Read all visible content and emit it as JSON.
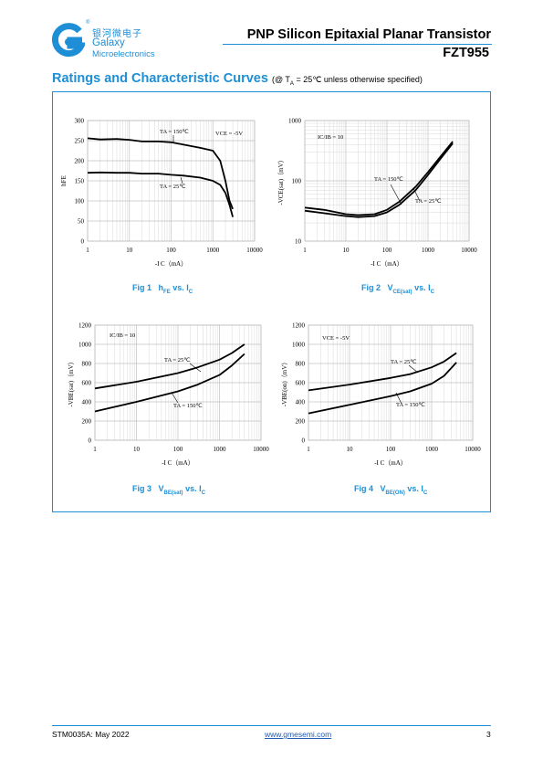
{
  "header": {
    "logo_cn": "银河微电子",
    "logo_reg": "®",
    "logo_en1": "Galaxy",
    "logo_en2": "Microelectronics",
    "title": "PNP Silicon Epitaxial Planar Transistor",
    "part": "FZT955"
  },
  "section": {
    "title": "Ratings and Characteristic Curves",
    "cond_pre": "(@ T",
    "cond_sub": "A",
    "cond_post": " = 25℃ unless otherwise specified)"
  },
  "captions": [
    {
      "fig": "Fig 1",
      "a": "h",
      "a_sub": "FE",
      "b": " vs. I",
      "b_sub": "C"
    },
    {
      "fig": "Fig 2",
      "a": "V",
      "a_sub": "CE(sat)",
      "b": " vs. I",
      "b_sub": "C"
    },
    {
      "fig": "Fig 3",
      "a": "V",
      "a_sub": "BE(sat)",
      "b": " vs. I",
      "b_sub": "C"
    },
    {
      "fig": "Fig 4",
      "a": "V",
      "a_sub": "BE(ON)",
      "b": " vs. I",
      "b_sub": "C"
    }
  ],
  "footer": {
    "left": "STM0035A: May 2022",
    "mid": "www.gmesemi.com",
    "right": "3"
  },
  "chart_data": [
    {
      "type": "line",
      "xscale": "log",
      "xlim": [
        1,
        10000
      ],
      "xticks": [
        "1",
        "10",
        "100",
        "1000",
        "10000"
      ],
      "yscale": "linear",
      "ylim": [
        0,
        300
      ],
      "yticks": [
        "0",
        "50",
        "100",
        "150",
        "200",
        "250",
        "300"
      ],
      "xlabel": "-I C（mA）",
      "ylabel": "hFE",
      "annotations": [
        "TA = 150℃",
        "VCE = -5V",
        "TA = 25℃"
      ],
      "series": [
        {
          "name": "TA = 150℃",
          "x": [
            1,
            2,
            5,
            10,
            20,
            50,
            100,
            200,
            500,
            1000,
            1500,
            2000,
            2500,
            3000
          ],
          "y": [
            256,
            253,
            254,
            252,
            248,
            248,
            246,
            240,
            232,
            225,
            200,
            150,
            100,
            80
          ]
        },
        {
          "name": "TA = 25℃",
          "x": [
            1,
            2,
            5,
            10,
            20,
            50,
            100,
            200,
            500,
            1000,
            1500,
            2000,
            2500,
            3000
          ],
          "y": [
            170,
            171,
            170,
            170,
            168,
            168,
            165,
            163,
            158,
            150,
            140,
            120,
            90,
            60
          ]
        }
      ]
    },
    {
      "type": "line",
      "xscale": "log",
      "xlim": [
        1,
        10000
      ],
      "xticks": [
        "1",
        "10",
        "100",
        "1000",
        "10000"
      ],
      "yscale": "log",
      "ylim": [
        10,
        1000
      ],
      "yticks": [
        "10",
        "100",
        "1000"
      ],
      "xlabel": "-I C（mA）",
      "ylabel": "-VCE(sat)（mV）",
      "annotations": [
        "IC/IB = 10",
        "TA = 150℃",
        "TA = 25℃"
      ],
      "series": [
        {
          "name": "TA = 150℃",
          "x": [
            1,
            3,
            10,
            20,
            50,
            100,
            200,
            500,
            1000,
            2000,
            4000
          ],
          "y": [
            36,
            33,
            28,
            27,
            28,
            33,
            45,
            80,
            140,
            250,
            450
          ]
        },
        {
          "name": "TA = 25℃",
          "x": [
            1,
            3,
            10,
            20,
            50,
            100,
            200,
            500,
            1000,
            2000,
            4000
          ],
          "y": [
            32,
            29,
            26,
            25,
            26,
            30,
            40,
            70,
            125,
            230,
            420
          ]
        }
      ]
    },
    {
      "type": "line",
      "xscale": "log",
      "xlim": [
        1,
        10000
      ],
      "xticks": [
        "1",
        "10",
        "100",
        "1000",
        "10000"
      ],
      "yscale": "linear",
      "ylim": [
        0,
        1200
      ],
      "yticks": [
        "0",
        "200",
        "400",
        "600",
        "800",
        "1000",
        "1200"
      ],
      "xlabel": "-I C（mA）",
      "ylabel": "-VBE(sat)（mV）",
      "annotations": [
        "IC/IB = 10",
        "TA = 25℃",
        "TA = 150℃"
      ],
      "series": [
        {
          "name": "TA = 25℃",
          "x": [
            1,
            10,
            100,
            300,
            1000,
            2000,
            4000
          ],
          "y": [
            540,
            610,
            700,
            760,
            840,
            910,
            1000
          ]
        },
        {
          "name": "TA = 150℃",
          "x": [
            1,
            10,
            100,
            300,
            1000,
            2000,
            4000
          ],
          "y": [
            300,
            400,
            510,
            580,
            680,
            780,
            900
          ]
        }
      ]
    },
    {
      "type": "line",
      "xscale": "log",
      "xlim": [
        1,
        10000
      ],
      "xticks": [
        "1",
        "10",
        "100",
        "1000",
        "10000"
      ],
      "yscale": "linear",
      "ylim": [
        0,
        1200
      ],
      "yticks": [
        "0",
        "200",
        "400",
        "600",
        "800",
        "1000",
        "1200"
      ],
      "xlabel": "-I C（mA）",
      "ylabel": "-VBE(on)（mV）",
      "annotations": [
        "VCE = -5V",
        "TA = 25℃",
        "TA = 150℃"
      ],
      "series": [
        {
          "name": "TA = 25℃",
          "x": [
            1,
            10,
            100,
            300,
            1000,
            2000,
            4000
          ],
          "y": [
            520,
            580,
            650,
            690,
            760,
            820,
            910
          ]
        },
        {
          "name": "TA = 150℃",
          "x": [
            1,
            10,
            100,
            300,
            1000,
            2000,
            4000
          ],
          "y": [
            280,
            370,
            460,
            510,
            590,
            670,
            810
          ]
        }
      ]
    }
  ]
}
